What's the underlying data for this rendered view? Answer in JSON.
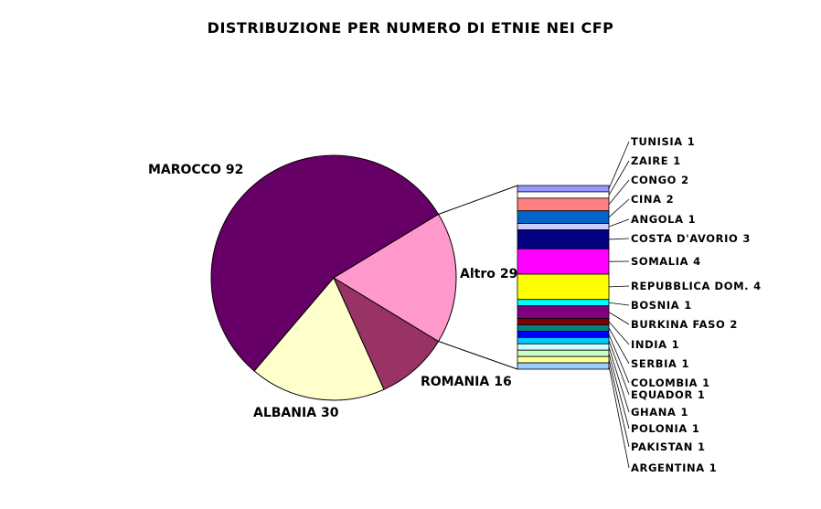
{
  "chart_data": {
    "type": "bar-of-pie",
    "title": "DISTRIBUZIONE PER NUMERO DI ETNIE NEI CFP",
    "categories": [
      "MAROCCO",
      "ALBANIA",
      "ROMANIA",
      "Altro"
    ],
    "values": [
      92,
      30,
      16,
      29
    ],
    "colors": [
      "#660066",
      "#ffffcc",
      "#993366",
      "#ff99cc"
    ],
    "breakdown": {
      "categories": [
        "TUNISIA",
        "ZAIRE",
        "CONGO",
        "CINA",
        "ANGOLA",
        "COSTA D'AVORIO",
        "SOMALIA",
        "REPUBBLICA DOM.",
        "BOSNIA",
        "BURKINA FASO",
        "INDIA",
        "SERBIA",
        "COLOMBIA",
        "EQUADOR",
        "GHANA",
        "POLONIA",
        "PAKISTAN",
        "ARGENTINA"
      ],
      "values": [
        1,
        1,
        2,
        2,
        1,
        3,
        4,
        4,
        1,
        2,
        1,
        1,
        1,
        1,
        1,
        1,
        1,
        1
      ],
      "colors": [
        "#9999ff",
        "#ffffff",
        "#ff8080",
        "#0066cc",
        "#ccccff",
        "#000080",
        "#ff00ff",
        "#ffff00",
        "#00ffff",
        "#800080",
        "#800000",
        "#008080",
        "#0000ff",
        "#00ccff",
        "#ccffff",
        "#ccffcc",
        "#ffff99",
        "#99ccff"
      ]
    }
  }
}
